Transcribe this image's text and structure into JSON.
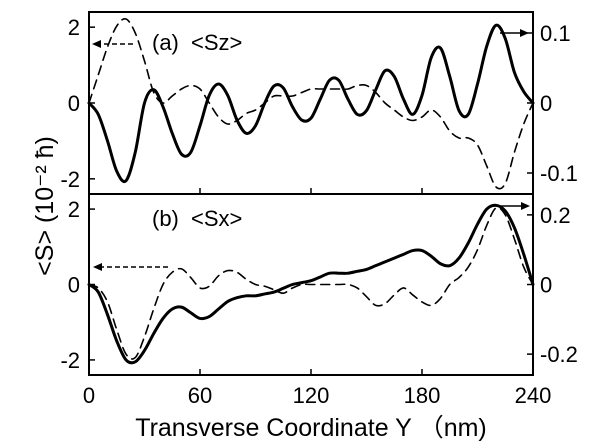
{
  "chart_data": [
    {
      "type": "line",
      "panel_label": "(a)",
      "quantity_label": "<Sz>",
      "x_range": [
        0,
        240
      ],
      "y_left_range": [
        -2.4,
        2.4
      ],
      "y_left_ticks": [
        -2,
        0,
        2
      ],
      "y_left_tick_labels": [
        "-2",
        "0",
        "2"
      ],
      "y_right_range": [
        -0.13,
        0.13
      ],
      "y_right_ticks": [
        -0.1,
        0,
        0.1
      ],
      "y_right_tick_labels": [
        "-0.1",
        "0",
        "0.1"
      ],
      "series": [
        {
          "style": "solid",
          "axis": "left",
          "x": [
            0,
            5,
            10,
            15,
            20,
            25,
            30,
            35,
            40,
            45,
            50,
            55,
            60,
            65,
            70,
            75,
            80,
            85,
            90,
            95,
            100,
            105,
            110,
            115,
            120,
            125,
            130,
            135,
            140,
            145,
            150,
            155,
            160,
            165,
            170,
            175,
            180,
            185,
            190,
            195,
            200,
            205,
            210,
            215,
            220,
            225,
            230,
            235,
            240
          ],
          "y": [
            0.0,
            -0.3,
            -1.0,
            -1.8,
            -2.05,
            -1.3,
            0.0,
            0.35,
            -0.1,
            -0.8,
            -1.35,
            -1.3,
            -0.6,
            0.2,
            0.5,
            0.2,
            -0.45,
            -0.8,
            -0.6,
            0.0,
            0.45,
            0.4,
            -0.1,
            -0.45,
            -0.4,
            0.1,
            0.6,
            0.6,
            0.1,
            -0.3,
            -0.2,
            0.35,
            0.85,
            0.7,
            0.1,
            -0.3,
            0.2,
            1.2,
            1.45,
            0.7,
            -0.2,
            -0.3,
            0.5,
            1.5,
            2.05,
            1.7,
            0.8,
            0.3,
            0.0
          ]
        },
        {
          "style": "dashed",
          "axis": "right",
          "x": [
            0,
            5,
            10,
            15,
            20,
            25,
            30,
            35,
            40,
            45,
            50,
            55,
            60,
            65,
            70,
            75,
            80,
            85,
            90,
            95,
            100,
            105,
            110,
            115,
            120,
            125,
            130,
            135,
            140,
            145,
            150,
            155,
            160,
            165,
            170,
            175,
            180,
            185,
            190,
            195,
            200,
            205,
            210,
            215,
            220,
            225,
            230,
            235,
            240
          ],
          "y": [
            0.0,
            0.04,
            0.08,
            0.11,
            0.12,
            0.1,
            0.06,
            0.015,
            0.0,
            0.01,
            0.02,
            0.025,
            0.02,
            0.0,
            -0.02,
            -0.03,
            -0.025,
            -0.015,
            -0.01,
            0.0,
            0.01,
            0.01,
            0.01,
            0.015,
            0.02,
            0.02,
            0.02,
            0.02,
            0.02,
            0.025,
            0.025,
            0.015,
            0.0,
            -0.01,
            -0.02,
            -0.025,
            -0.02,
            -0.01,
            -0.02,
            -0.04,
            -0.05,
            -0.05,
            -0.06,
            -0.09,
            -0.12,
            -0.115,
            -0.07,
            -0.03,
            0.0
          ]
        }
      ]
    },
    {
      "type": "line",
      "panel_label": "(b)",
      "quantity_label": "<Sx>",
      "x_range": [
        0,
        240
      ],
      "y_left_range": [
        -2.4,
        2.4
      ],
      "y_left_ticks": [
        -2,
        0,
        2
      ],
      "y_left_tick_labels": [
        "-2",
        "0",
        "2"
      ],
      "y_right_range": [
        -0.26,
        0.26
      ],
      "y_right_ticks": [
        -0.2,
        0,
        0.2
      ],
      "y_right_tick_labels": [
        "-0.2",
        "0",
        "0.2"
      ],
      "series": [
        {
          "style": "solid",
          "axis": "left",
          "x": [
            0,
            5,
            10,
            15,
            20,
            25,
            30,
            35,
            40,
            45,
            50,
            55,
            60,
            65,
            70,
            75,
            80,
            85,
            90,
            95,
            100,
            105,
            110,
            115,
            120,
            125,
            130,
            135,
            140,
            145,
            150,
            155,
            160,
            165,
            170,
            175,
            180,
            185,
            190,
            195,
            200,
            205,
            210,
            215,
            220,
            225,
            230,
            235,
            240
          ],
          "y": [
            0.0,
            -0.2,
            -0.8,
            -1.5,
            -2.0,
            -2.05,
            -1.75,
            -1.3,
            -0.9,
            -0.65,
            -0.6,
            -0.75,
            -0.9,
            -0.85,
            -0.65,
            -0.45,
            -0.35,
            -0.3,
            -0.3,
            -0.25,
            -0.2,
            -0.1,
            0.0,
            0.05,
            0.1,
            0.2,
            0.3,
            0.3,
            0.3,
            0.35,
            0.4,
            0.5,
            0.6,
            0.7,
            0.8,
            0.9,
            0.9,
            0.75,
            0.55,
            0.5,
            0.7,
            1.1,
            1.6,
            2.0,
            2.1,
            1.95,
            1.5,
            0.8,
            0.0
          ]
        },
        {
          "style": "dashed",
          "axis": "right",
          "x": [
            0,
            5,
            10,
            15,
            20,
            25,
            30,
            35,
            40,
            45,
            50,
            55,
            60,
            65,
            70,
            75,
            80,
            85,
            90,
            95,
            100,
            105,
            110,
            115,
            120,
            125,
            130,
            135,
            140,
            145,
            150,
            155,
            160,
            165,
            170,
            175,
            180,
            185,
            190,
            195,
            200,
            205,
            210,
            215,
            220,
            225,
            230,
            235,
            240
          ],
          "y": [
            0.0,
            -0.01,
            -0.05,
            -0.13,
            -0.2,
            -0.21,
            -0.15,
            -0.07,
            0.0,
            0.035,
            0.045,
            0.02,
            -0.01,
            -0.005,
            0.025,
            0.04,
            0.035,
            0.015,
            0.0,
            -0.005,
            -0.015,
            -0.025,
            -0.01,
            0.0,
            0.0,
            0.0,
            0.0,
            0.0,
            0.0,
            -0.01,
            -0.035,
            -0.06,
            -0.055,
            -0.03,
            -0.01,
            -0.03,
            -0.05,
            -0.06,
            -0.04,
            0.0,
            0.02,
            0.05,
            0.1,
            0.17,
            0.22,
            0.2,
            0.13,
            0.05,
            0.0
          ]
        }
      ]
    }
  ],
  "x_axis": {
    "ticks": [
      0,
      60,
      120,
      180,
      240
    ],
    "tick_labels": [
      "0",
      "60",
      "120",
      "180",
      "240"
    ],
    "label": "Transverse Coordinate Y （nm)"
  },
  "y_axis_label": "<S> (10⁻² ħ)"
}
